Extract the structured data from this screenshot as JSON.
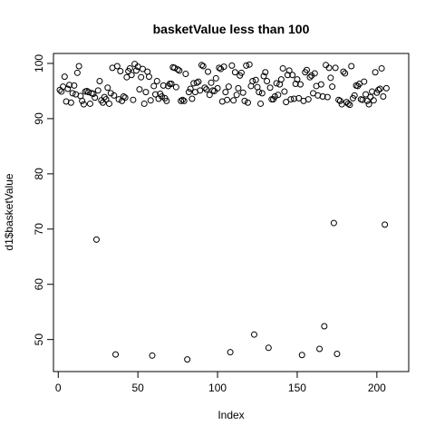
{
  "chart_data": {
    "type": "scatter",
    "title": "basketValue less than 100",
    "xlabel": "Index",
    "ylabel": "d1$basketValue",
    "xlim": [
      -3,
      220
    ],
    "ylim": [
      44.2,
      101.8
    ],
    "xticks": [
      0,
      50,
      100,
      150,
      200
    ],
    "yticks": [
      50,
      60,
      70,
      80,
      90,
      100
    ],
    "grid": false,
    "legend": "none",
    "x_start": 1,
    "y": [
      95.2,
      94.9,
      95.8,
      97.6,
      93.1,
      95.4,
      96.1,
      92.9,
      94.6,
      96.0,
      94.4,
      98.3,
      99.5,
      94.1,
      93.2,
      92.6,
      94.9,
      95.0,
      94.8,
      92.7,
      94.6,
      94.5,
      93.8,
      68.1,
      95.1,
      96.8,
      93.3,
      92.9,
      93.9,
      93.5,
      95.6,
      92.7,
      94.6,
      99.2,
      94.2,
      47.3,
      99.5,
      93.5,
      98.6,
      93.2,
      94.0,
      93.8,
      97.5,
      98.6,
      99.1,
      97.9,
      93.4,
      99.9,
      98.7,
      99.4,
      95.3,
      97.5,
      99.0,
      92.7,
      94.8,
      98.5,
      97.6,
      93.3,
      47.1,
      95.9,
      94.4,
      96.8,
      93.6,
      94.5,
      94.0,
      96.0,
      93.7,
      93.2,
      95.9,
      96.3,
      96.3,
      99.3,
      99.2,
      95.7,
      98.9,
      98.7,
      93.2,
      93.4,
      93.2,
      98.1,
      46.4,
      94.8,
      95.4,
      93.6,
      96.4,
      94.8,
      96.5,
      96.7,
      95.1,
      99.7,
      99.5,
      95.6,
      95.3,
      98.5,
      94.3,
      96.5,
      95.1,
      95.0,
      97.3,
      95.5,
      99.2,
      99.0,
      93.1,
      99.4,
      94.8,
      93.4,
      95.8,
      47.7,
      99.6,
      93.3,
      98.4,
      94.3,
      95.5,
      97.8,
      98.3,
      94.7,
      93.2,
      99.6,
      92.9,
      99.8,
      95.9,
      96.8,
      50.9,
      97.0,
      95.7,
      94.8,
      92.7,
      94.6,
      97.7,
      98.4,
      96.8,
      48.5,
      95.6,
      93.5,
      93.5,
      94.0,
      96.4,
      94.3,
      96.2,
      97.1,
      99.1,
      94.9,
      93.0,
      97.9,
      98.7,
      93.5,
      97.9,
      93.6,
      96.3,
      97.1,
      93.7,
      96.2,
      47.2,
      93.2,
      98.4,
      98.8,
      93.5,
      97.5,
      97.8,
      94.6,
      98.2,
      95.9,
      94.2,
      48.3,
      96.2,
      94.0,
      52.4,
      99.7,
      93.9,
      99.2,
      97.4,
      95.8,
      71.1,
      99.2,
      47.4,
      93.4,
      93.2,
      92.6,
      98.5,
      98.2,
      93.0,
      92.7,
      92.5,
      99.5,
      93.7,
      94.2,
      96.0,
      95.9,
      96.3,
      93.5,
      93.4,
      96.7,
      94.4,
      93.2,
      92.6,
      93.9,
      94.9,
      93.3,
      98.4,
      94.7,
      95.2,
      95.4,
      99.1,
      94.0,
      70.8,
      95.5
    ]
  }
}
